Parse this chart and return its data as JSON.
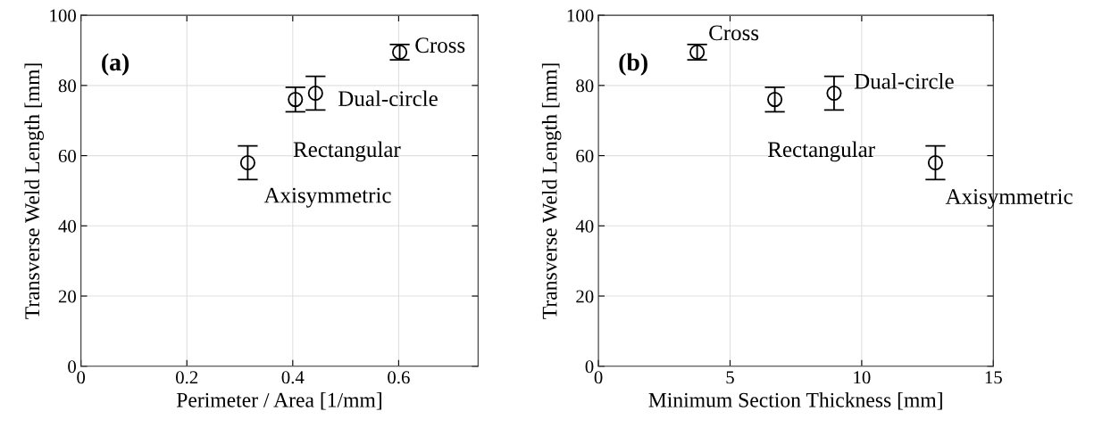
{
  "chart_data": [
    {
      "type": "scatter",
      "title": "(a)",
      "xlabel": "Perimeter / Area [1/mm]",
      "ylabel": "Transverse Weld Length [mm]",
      "xlim": [
        0,
        0.75
      ],
      "xticks": [
        0,
        0.2,
        0.4,
        0.6
      ],
      "ylim": [
        0,
        100
      ],
      "yticks": [
        0,
        20,
        40,
        60,
        80,
        100
      ],
      "grid": true,
      "marker": "circle",
      "series": [
        {
          "color": "#000000",
          "x": [
            0.602,
            0.443,
            0.405,
            0.315
          ],
          "values": [
            89.5,
            77.8,
            76.0,
            58.0
          ],
          "errors": [
            2.2,
            4.8,
            3.5,
            4.8
          ]
        }
      ],
      "annotations": [
        {
          "text": "Cross",
          "x": 0.602,
          "y": 89.5
        },
        {
          "text": "Dual-circle",
          "x": 0.443,
          "y": 77.8
        },
        {
          "text": "Rectangular",
          "x": 0.405,
          "y": 76.0
        },
        {
          "text": "Axisymmetric",
          "x": 0.315,
          "y": 58.0
        }
      ]
    },
    {
      "type": "scatter",
      "title": "(b)",
      "xlabel": "Minimum Section Thickness [mm]",
      "ylabel": "Transverse Weld Length [mm]",
      "xlim": [
        0,
        15
      ],
      "xticks": [
        0,
        5,
        10,
        15
      ],
      "ylim": [
        0,
        100
      ],
      "yticks": [
        0,
        20,
        40,
        60,
        80,
        100
      ],
      "grid": true,
      "marker": "circle",
      "series": [
        {
          "color": "#000000",
          "x": [
            3.75,
            6.7,
            8.95,
            12.8
          ],
          "values": [
            89.5,
            76.0,
            77.8,
            58.0
          ],
          "errors": [
            2.2,
            3.5,
            4.8,
            4.8
          ]
        }
      ],
      "annotations": [
        {
          "text": "Cross",
          "x": 3.75,
          "y": 89.5
        },
        {
          "text": "Dual-circle",
          "x": 8.95,
          "y": 77.8
        },
        {
          "text": "Rectangular",
          "x": 6.7,
          "y": 76.0
        },
        {
          "text": "Axisymmetric",
          "x": 12.8,
          "y": 58.0
        }
      ]
    }
  ]
}
